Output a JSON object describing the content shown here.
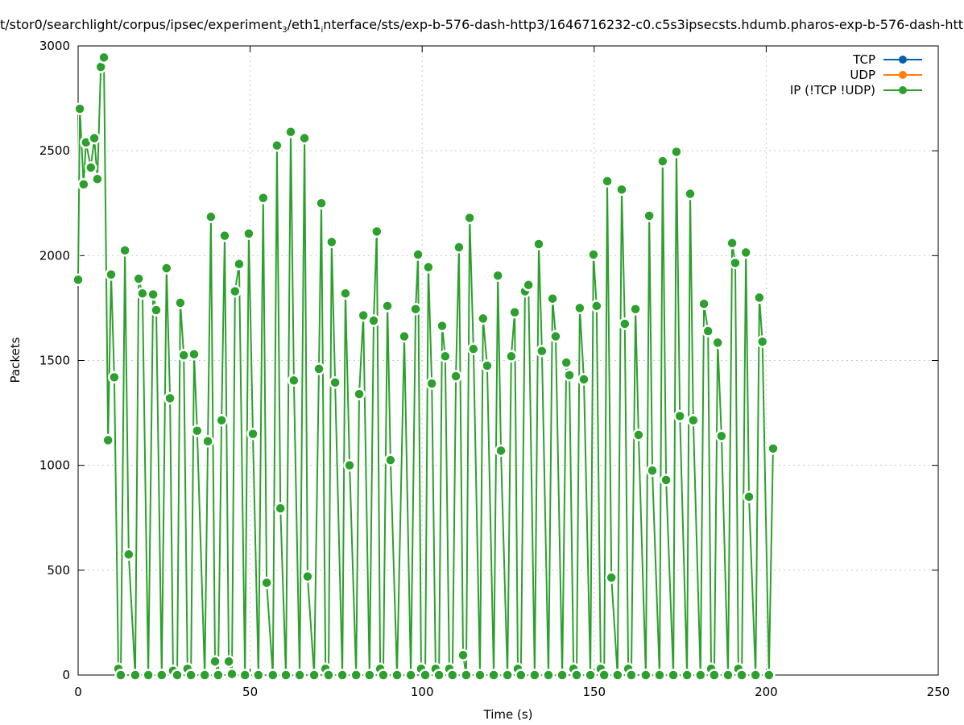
{
  "chart_data": {
    "type": "line",
    "title": "t/stor0/searchlight/corpus/ipsec/experiment_3/eth1_interface/sts/exp-b-576-dash-http3/1646716232-c0.c5s3ipsecsts.hdumb.pharos-exp-b-576-dash-htt",
    "xlabel": "Time (s)",
    "ylabel": "Packets",
    "xlim": [
      0,
      250
    ],
    "ylim": [
      0,
      3000
    ],
    "xticks": [
      0,
      50,
      100,
      150,
      200,
      250
    ],
    "yticks": [
      0,
      500,
      1000,
      1500,
      2000,
      2500,
      3000
    ],
    "grid": true,
    "legend_position": "top-right",
    "series": [
      {
        "name": "TCP",
        "color": "#0060ad",
        "x": [],
        "y": []
      },
      {
        "name": "UDP",
        "color": "#ff7f0e",
        "x": [],
        "y": []
      },
      {
        "name": "IP (!TCP  !UDP)",
        "color": "#2ca02c",
        "x": [
          0,
          0.5,
          1.6,
          2.3,
          3.7,
          4.7,
          5.6,
          6.6,
          7.5,
          8.7,
          9.6,
          10.5,
          11.7,
          12.4,
          13.6,
          14.7,
          16.6,
          17.6,
          18.7,
          20.4,
          21.8,
          22.7,
          24.3,
          25.7,
          26.7,
          27.6,
          28.8,
          29.7,
          30.7,
          31.8,
          32.8,
          33.7,
          34.6,
          36.8,
          37.7,
          38.6,
          39.8,
          40.7,
          41.7,
          42.6,
          43.8,
          44.7,
          45.6,
          46.8,
          48.5,
          49.6,
          50.8,
          52.4,
          53.8,
          54.8,
          56.6,
          57.8,
          58.8,
          60.4,
          61.8,
          62.7,
          64.4,
          65.8,
          66.7,
          68.6,
          70.0,
          70.7,
          71.9,
          72.8,
          73.7,
          74.7,
          76.8,
          77.7,
          78.9,
          80.8,
          81.7,
          82.9,
          84.7,
          85.9,
          86.8,
          87.8,
          88.7,
          89.9,
          90.8,
          92.7,
          94.8,
          96.7,
          98.1,
          98.8,
          99.7,
          100.9,
          101.8,
          102.8,
          103.9,
          104.9,
          105.8,
          106.7,
          107.9,
          108.8,
          109.8,
          110.7,
          111.9,
          112.8,
          113.8,
          114.9,
          116.8,
          117.7,
          118.9,
          120.8,
          122.0,
          122.9,
          124.8,
          125.9,
          126.9,
          127.8,
          128.7,
          129.9,
          130.9,
          132.7,
          133.9,
          134.8,
          136.7,
          137.9,
          138.8,
          140.7,
          141.9,
          142.8,
          144.0,
          144.9,
          145.8,
          147.0,
          148.9,
          149.8,
          150.7,
          151.9,
          152.9,
          153.8,
          155.0,
          156.8,
          158.0,
          158.9,
          159.9,
          160.8,
          162.0,
          162.9,
          165.0,
          166.0,
          166.9,
          169.0,
          169.9,
          170.9,
          173.0,
          173.9,
          174.9,
          177.0,
          177.9,
          178.8,
          180.9,
          181.9,
          183.1,
          184.0,
          184.9,
          185.9,
          187.0,
          188.9,
          190.1,
          191.0,
          191.9,
          192.9,
          194.1,
          195.0,
          196.9,
          198.0,
          198.9,
          200.8,
          202.0
        ],
        "y": [
          1885,
          2700,
          2340,
          2540,
          2420,
          2560,
          2365,
          2900,
          2945,
          1120,
          1910,
          1420,
          30,
          0,
          2025,
          575,
          0,
          1890,
          1820,
          0,
          1815,
          1740,
          0,
          1940,
          1320,
          20,
          0,
          1775,
          1525,
          30,
          0,
          1530,
          1165,
          0,
          1115,
          2185,
          65,
          0,
          1215,
          2095,
          65,
          5,
          1830,
          1960,
          0,
          2105,
          1150,
          0,
          2275,
          440,
          0,
          2525,
          795,
          0,
          2590,
          1405,
          0,
          2560,
          470,
          0,
          1460,
          2250,
          30,
          0,
          2065,
          1395,
          0,
          1820,
          1000,
          0,
          1340,
          1715,
          0,
          1690,
          2115,
          30,
          0,
          1760,
          1025,
          0,
          1615,
          0,
          1745,
          2005,
          30,
          0,
          1945,
          1390,
          30,
          0,
          1665,
          1520,
          30,
          0,
          1425,
          2040,
          95,
          0,
          2180,
          1555,
          0,
          1700,
          1475,
          0,
          1905,
          1070,
          0,
          1520,
          1730,
          30,
          0,
          1830,
          1860,
          0,
          2055,
          1545,
          0,
          1795,
          1615,
          0,
          1490,
          1430,
          30,
          0,
          1750,
          1410,
          0,
          2005,
          1760,
          30,
          0,
          2355,
          465,
          0,
          2315,
          1675,
          30,
          0,
          1745,
          1145,
          0,
          2190,
          975,
          0,
          2450,
          930,
          0,
          2495,
          1235,
          0,
          2295,
          1215,
          0,
          1770,
          1640,
          30,
          0,
          1585,
          1140,
          0,
          2060,
          1965,
          30,
          0,
          2015,
          850,
          0,
          1800,
          1590,
          0,
          1080
        ]
      }
    ]
  }
}
